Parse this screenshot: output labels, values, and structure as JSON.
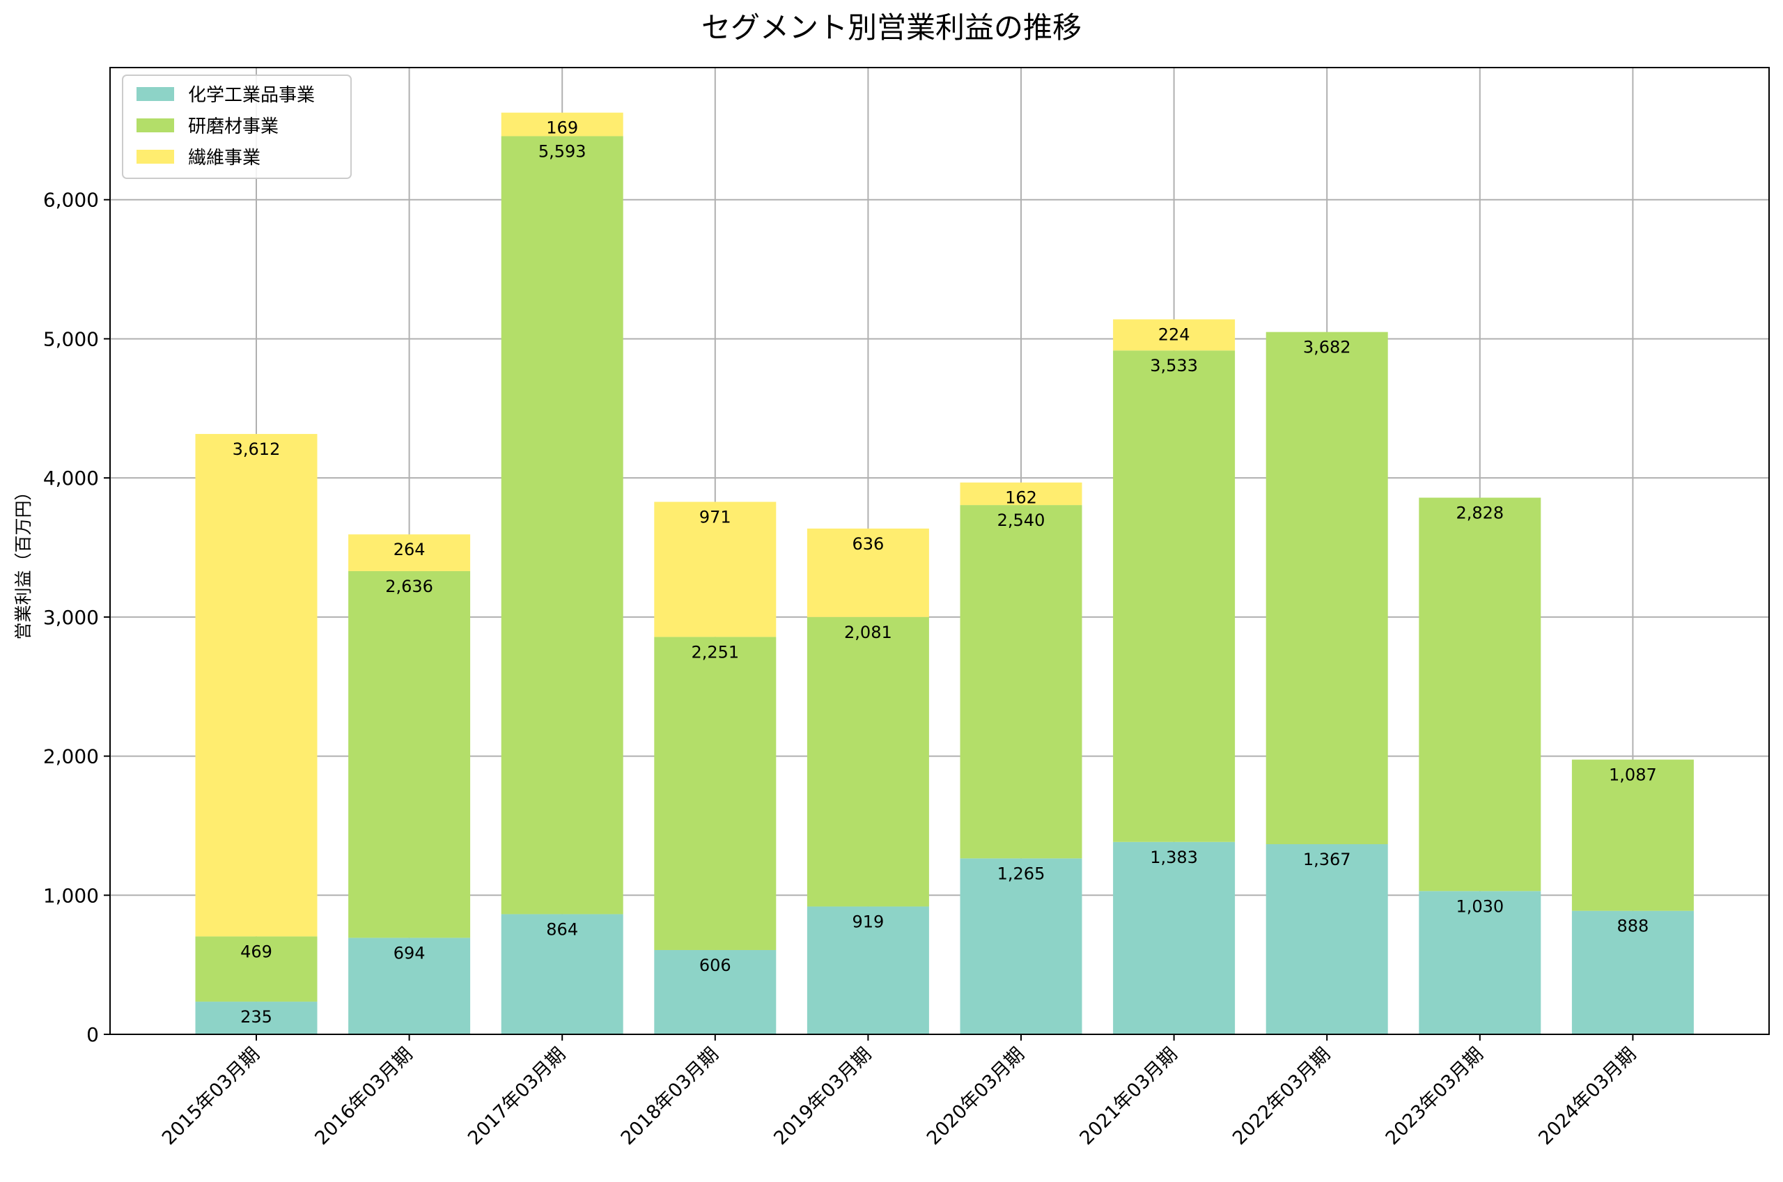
{
  "chart_data": {
    "type": "bar",
    "stacked": true,
    "title": "セグメント別営業利益の推移",
    "xlabel": "",
    "ylabel": "営業利益（百万円）",
    "ylim": [
      0,
      6950
    ],
    "yticks": [
      0,
      1000,
      2000,
      3000,
      4000,
      5000,
      6000
    ],
    "ytick_labels": [
      "0",
      "1,000",
      "2,000",
      "3,000",
      "4,000",
      "5,000",
      "6,000"
    ],
    "grid": true,
    "legend_position": "top-left",
    "categories": [
      "2015年03月期",
      "2016年03月期",
      "2017年03月期",
      "2018年03月期",
      "2019年03月期",
      "2020年03月期",
      "2021年03月期",
      "2022年03月期",
      "2023年03月期",
      "2024年03月期"
    ],
    "series": [
      {
        "name": "化学工業品事業",
        "color": "#8dd3c7",
        "values": [
          235,
          694,
          864,
          606,
          919,
          1265,
          1383,
          1367,
          1030,
          888
        ]
      },
      {
        "name": "研磨材事業",
        "color": "#b3de69",
        "values": [
          469,
          2636,
          5593,
          2251,
          2081,
          2540,
          3533,
          3682,
          2828,
          1087
        ]
      },
      {
        "name": "繊維事業",
        "color": "#ffed6f",
        "values": [
          3612,
          264,
          169,
          971,
          636,
          162,
          224,
          null,
          null,
          null
        ]
      }
    ]
  }
}
